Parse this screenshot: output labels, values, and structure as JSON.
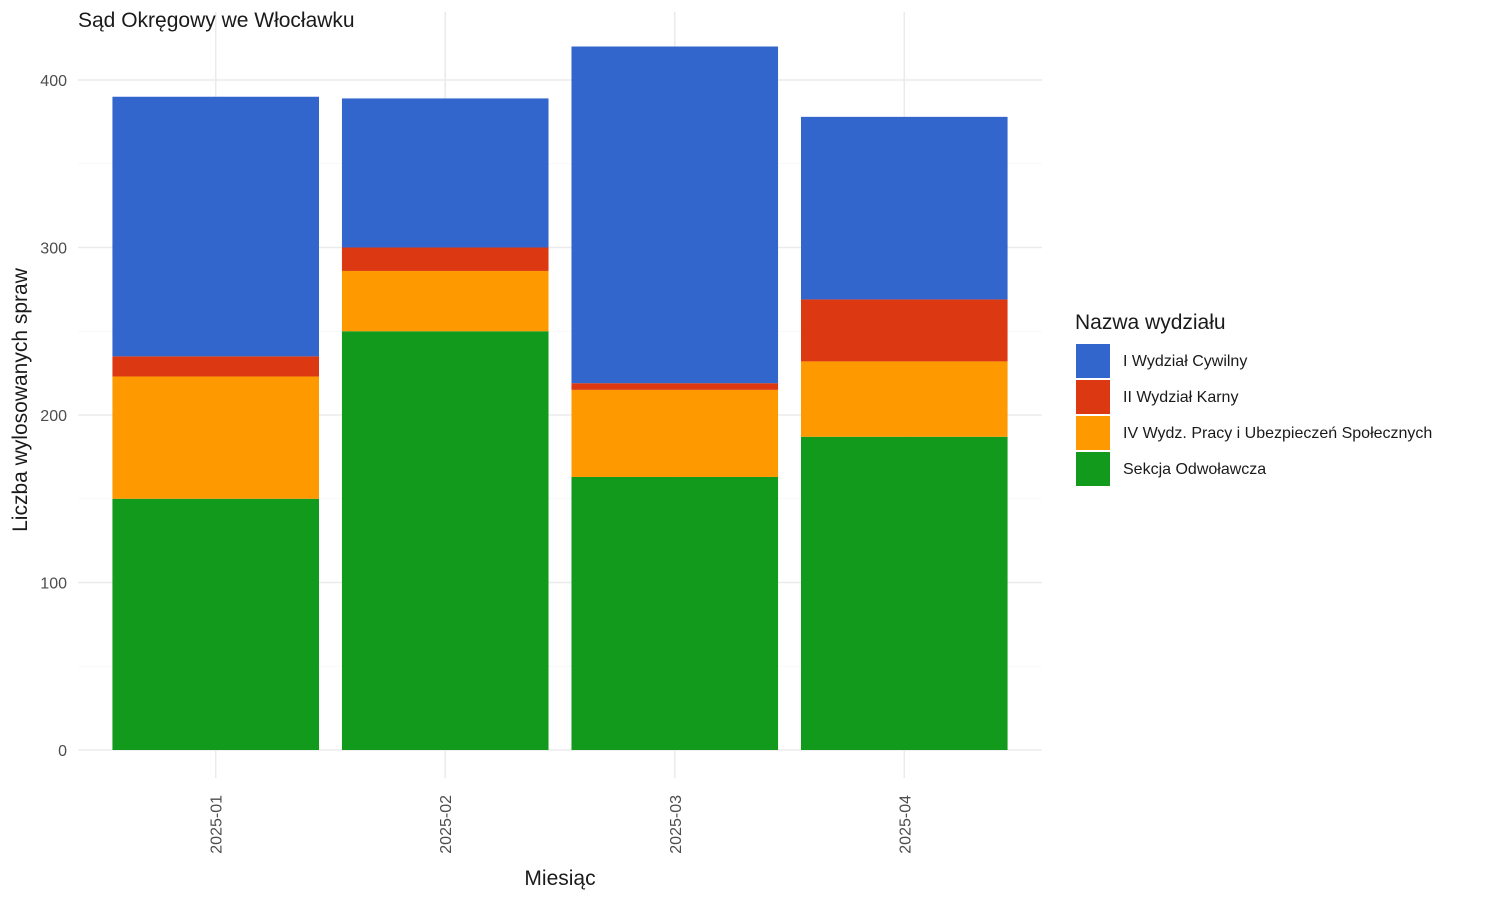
{
  "chart_data": {
    "type": "bar",
    "stacked": true,
    "title": "Sąd Okręgowy we Włocławku",
    "xlabel": "Miesiąc",
    "ylabel": "Liczba wylosowanych spraw",
    "categories": [
      "2025-01",
      "2025-02",
      "2025-03",
      "2025-04"
    ],
    "ylim": [
      0,
      430
    ],
    "yticks": [
      0,
      100,
      200,
      300,
      400
    ],
    "grid": true,
    "legend": {
      "title": "Nazwa wydziału",
      "position": "right"
    },
    "series": [
      {
        "name": "Sekcja Odwoławcza",
        "color": "#129a1d",
        "values": [
          150,
          250,
          163,
          187
        ]
      },
      {
        "name": "IV Wydz. Pracy i Ubezpieczeń Społecznych",
        "color": "#ff9900",
        "values": [
          73,
          36,
          52,
          45
        ]
      },
      {
        "name": "II Wydział Karny",
        "color": "#dc3912",
        "values": [
          12,
          14,
          4,
          37
        ]
      },
      {
        "name": "I Wydział Cywilny",
        "color": "#3366cc",
        "values": [
          155,
          89,
          201,
          109
        ]
      }
    ],
    "legend_order": [
      "I Wydział Cywilny",
      "II Wydział Karny",
      "IV Wydz. Pracy i Ubezpieczeń Społecznych",
      "Sekcja Odwoławcza"
    ]
  }
}
